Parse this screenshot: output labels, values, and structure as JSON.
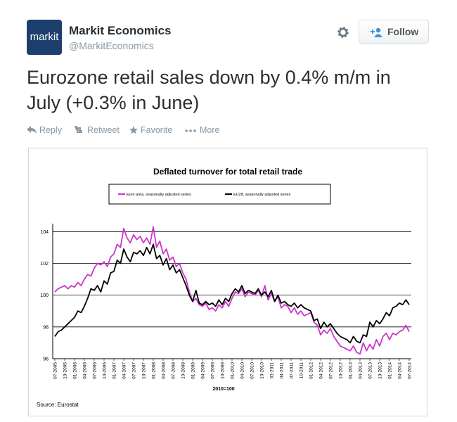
{
  "avatar_text": "markit",
  "user": {
    "name": "Markit Economics",
    "handle": "@MarkitEconomics"
  },
  "follow_button": "Follow",
  "tweet_text": "Eurozone retail sales down by 0.4% m/m in July (+0.3% in June)",
  "actions": [
    "Reply",
    "Retweet",
    "Favorite",
    "More"
  ],
  "chart_data": {
    "type": "line",
    "title": "Deflated turnover for total retail trade",
    "x_label": "2010=100",
    "source": "Source: Eurostat",
    "categories": [
      "07-2005",
      null,
      null,
      "10-2005",
      null,
      null,
      "01-2006",
      null,
      null,
      "04-2006",
      null,
      null,
      "07-2006",
      null,
      null,
      "10-2006",
      null,
      null,
      "01-2007",
      null,
      null,
      "04-2007",
      null,
      null,
      "07-2007",
      null,
      null,
      "10-2007",
      null,
      null,
      "01-2008",
      null,
      null,
      "04-2008",
      null,
      null,
      "07-2008",
      null,
      null,
      "10-2008",
      null,
      null,
      "01-2009",
      null,
      null,
      "04-2009",
      null,
      null,
      "07-2009",
      null,
      null,
      "10-2009",
      null,
      null,
      "01-2010",
      null,
      null,
      "04-2010",
      null,
      null,
      "07-2010",
      null,
      null,
      "10-2010",
      null,
      null,
      "01-2011",
      null,
      null,
      "04-2011",
      null,
      null,
      "07-2011",
      null,
      null,
      "10-2011",
      null,
      null,
      "01-2012",
      null,
      null,
      "04-2012",
      null,
      null,
      "07-2012",
      null,
      null,
      "10-2012",
      null,
      null,
      "01-2013",
      null,
      null,
      "04-2013",
      null,
      null,
      "07-2013",
      null,
      null,
      "10-2013",
      null,
      null,
      "01-2014",
      null,
      null,
      "04-2014",
      null,
      null,
      "07-2014"
    ],
    "series": [
      {
        "name": "Euro area, seasonally adjusted series",
        "color": "#cc33cc",
        "values": [
          100.2,
          100.4,
          100.5,
          100.6,
          100.4,
          100.6,
          100.5,
          100.8,
          100.6,
          101.0,
          101.3,
          101.2,
          101.7,
          102.0,
          101.9,
          102.1,
          101.8,
          102.4,
          102.6,
          103.2,
          103.0,
          104.2,
          103.6,
          103.3,
          103.8,
          103.5,
          103.7,
          103.3,
          103.6,
          103.2,
          104.3,
          103.0,
          103.4,
          102.6,
          102.9,
          102.2,
          102.4,
          101.8,
          102.0,
          101.4,
          101.0,
          100.2,
          99.6,
          99.8,
          99.4,
          99.3,
          99.5,
          99.1,
          99.2,
          99.0,
          99.4,
          99.2,
          99.6,
          99.3,
          99.8,
          100.2,
          100.1,
          100.4,
          99.9,
          100.2,
          100.1,
          100.0,
          100.3,
          99.9,
          100.6,
          99.7,
          100.1,
          99.6,
          99.9,
          99.2,
          99.4,
          99.3,
          98.9,
          99.2,
          98.8,
          99.0,
          98.7,
          98.8,
          98.9,
          98.3,
          98.1,
          97.5,
          97.8,
          97.6,
          97.9,
          97.4,
          97.1,
          96.8,
          96.7,
          96.6,
          96.5,
          96.8,
          96.4,
          96.3,
          97.0,
          96.5,
          96.9,
          96.6,
          97.2,
          96.8,
          97.4,
          97.6,
          97.2,
          97.6,
          97.5,
          97.7,
          97.8,
          98.1,
          97.7
        ]
      },
      {
        "name": "EU28, seasonally adjusted series",
        "color": "#000000",
        "values": [
          97.4,
          97.7,
          97.8,
          98.0,
          98.2,
          98.4,
          98.6,
          99.0,
          98.9,
          99.3,
          99.8,
          100.4,
          100.3,
          100.6,
          100.2,
          100.9,
          100.7,
          101.4,
          101.5,
          102.2,
          102.0,
          102.9,
          102.4,
          102.1,
          102.7,
          102.6,
          102.8,
          102.5,
          103.0,
          102.6,
          103.2,
          102.3,
          102.5,
          101.9,
          102.3,
          101.6,
          101.9,
          101.4,
          101.6,
          101.1,
          100.6,
          100.0,
          99.6,
          100.3,
          99.5,
          99.4,
          99.6,
          99.4,
          99.5,
          99.3,
          99.7,
          99.4,
          99.8,
          99.6,
          100.1,
          100.4,
          100.2,
          100.6,
          100.1,
          100.3,
          100.2,
          100.1,
          100.4,
          100.0,
          100.2,
          99.9,
          100.3,
          99.6,
          100.0,
          99.5,
          99.6,
          99.4,
          99.3,
          99.5,
          99.2,
          99.4,
          99.2,
          99.1,
          99.0,
          98.4,
          98.5,
          97.9,
          98.3,
          98.0,
          98.2,
          97.9,
          97.6,
          97.4,
          97.3,
          97.2,
          97.0,
          97.4,
          97.1,
          97.0,
          97.5,
          97.4,
          98.3,
          98.0,
          98.4,
          98.2,
          98.5,
          98.9,
          98.7,
          99.2,
          99.3,
          99.5,
          99.4,
          99.7,
          99.4
        ]
      }
    ],
    "ylim": [
      96,
      104.5
    ],
    "yticks": [
      96,
      98,
      100,
      102,
      104
    ],
    "grid": true,
    "legend": "top"
  }
}
